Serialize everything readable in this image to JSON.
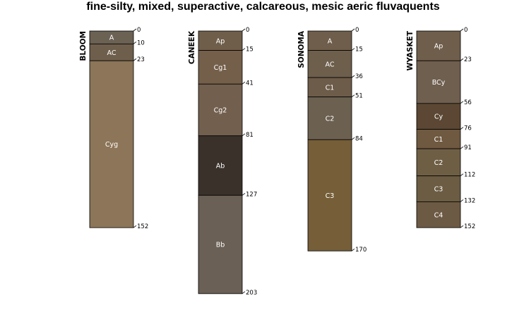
{
  "title": "fine-silty, mixed, superactive, calcareous, mesic aeric fluvaquents",
  "chart_data": {
    "type": "soil-profile-sketch",
    "depth_unit": "cm",
    "profiles": [
      {
        "name": "BLOOM",
        "horizons": [
          {
            "name": "A",
            "top": 0,
            "bottom": 10,
            "color": "#6b6254"
          },
          {
            "name": "AC",
            "top": 10,
            "bottom": 23,
            "color": "#6e5f4c"
          },
          {
            "name": "Cyg",
            "top": 23,
            "bottom": 152,
            "color": "#8c7558"
          }
        ]
      },
      {
        "name": "CANEEK",
        "horizons": [
          {
            "name": "Ap",
            "top": 0,
            "bottom": 15,
            "color": "#6f5e4a"
          },
          {
            "name": "Cg1",
            "top": 15,
            "bottom": 41,
            "color": "#745f4b"
          },
          {
            "name": "Cg2",
            "top": 41,
            "bottom": 81,
            "color": "#725f4e"
          },
          {
            "name": "Ab",
            "top": 81,
            "bottom": 127,
            "color": "#3a312b"
          },
          {
            "name": "Bb",
            "top": 127,
            "bottom": 203,
            "color": "#6a6055"
          }
        ]
      },
      {
        "name": "SONOMA",
        "horizons": [
          {
            "name": "A",
            "top": 0,
            "bottom": 15,
            "color": "#6f5e4b"
          },
          {
            "name": "AC",
            "top": 15,
            "bottom": 36,
            "color": "#6e5f4d"
          },
          {
            "name": "C1",
            "top": 36,
            "bottom": 51,
            "color": "#6d5c49"
          },
          {
            "name": "C2",
            "top": 51,
            "bottom": 84,
            "color": "#6c6050"
          },
          {
            "name": "C3",
            "top": 84,
            "bottom": 170,
            "color": "#755e38"
          }
        ]
      },
      {
        "name": "WYASKET",
        "horizons": [
          {
            "name": "Ap",
            "top": 0,
            "bottom": 23,
            "color": "#6f5e4b"
          },
          {
            "name": "BCy",
            "top": 23,
            "bottom": 56,
            "color": "#6f5f4f"
          },
          {
            "name": "Cy",
            "top": 56,
            "bottom": 76,
            "color": "#5b4733"
          },
          {
            "name": "C1",
            "top": 76,
            "bottom": 91,
            "color": "#6f5940"
          },
          {
            "name": "C2",
            "top": 91,
            "bottom": 112,
            "color": "#6e5f44"
          },
          {
            "name": "C3",
            "top": 112,
            "bottom": 132,
            "color": "#6b5c43"
          },
          {
            "name": "C4",
            "top": 132,
            "bottom": 152,
            "color": "#6d5a44"
          }
        ]
      }
    ]
  }
}
